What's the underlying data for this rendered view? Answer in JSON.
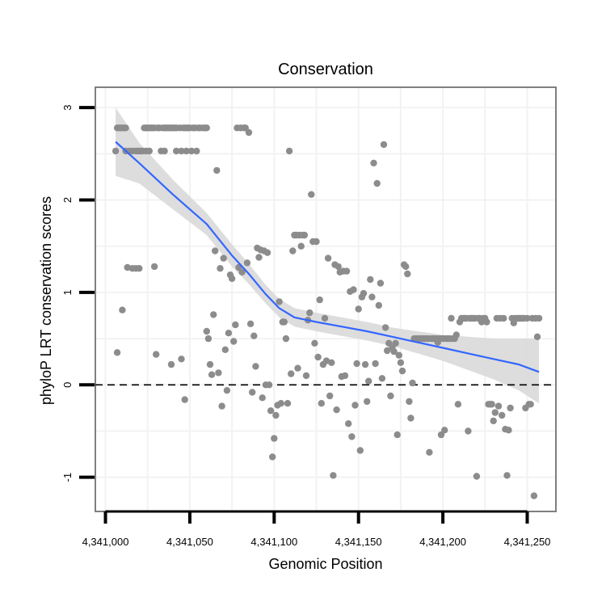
{
  "colors": {
    "point": "#8c8c8c",
    "line": "#3366ff",
    "ribbon": "#d9d9d9",
    "panel_border": "#7f7f7f",
    "grid": "#f2f2f2",
    "hline": "#000000"
  },
  "chart_data": {
    "type": "scatter",
    "title": "Conservation",
    "xlabel": "Genomic Position",
    "ylabel": "phyloP LRT conservation scores",
    "xlim": [
      4340994,
      4341267
    ],
    "ylim": [
      -1.37,
      3.22
    ],
    "x_ticks": [
      4341000,
      4341050,
      4341100,
      4341150,
      4341200,
      4341250
    ],
    "x_tick_labels": [
      "4,341,000",
      "4,341,050",
      "4,341,100",
      "4,341,150",
      "4,341,200",
      "4,341,250"
    ],
    "y_ticks": [
      -1,
      0,
      1,
      2,
      3
    ],
    "y_tick_labels": [
      "-1",
      "0",
      "1",
      "2",
      "3"
    ],
    "reference_line": {
      "y": 0,
      "style": "dashed"
    },
    "points": [
      [
        4341006,
        2.53
      ],
      [
        4341007,
        2.78
      ],
      [
        4341007,
        0.35
      ],
      [
        4341008,
        2.78
      ],
      [
        4341009,
        2.78
      ],
      [
        4341010,
        2.78
      ],
      [
        4341010,
        0.81
      ],
      [
        4341011,
        2.78
      ],
      [
        4341012,
        2.78
      ],
      [
        4341012,
        2.53
      ],
      [
        4341013,
        1.27
      ],
      [
        4341014,
        2.53
      ],
      [
        4341016,
        2.53
      ],
      [
        4341016,
        1.26
      ],
      [
        4341018,
        2.53
      ],
      [
        4341018,
        1.26
      ],
      [
        4341019,
        2.53
      ],
      [
        4341020,
        2.53
      ],
      [
        4341020,
        1.26
      ],
      [
        4341021,
        2.53
      ],
      [
        4341022,
        2.53
      ],
      [
        4341023,
        2.78
      ],
      [
        4341024,
        2.78
      ],
      [
        4341024,
        2.53
      ],
      [
        4341025,
        2.78
      ],
      [
        4341026,
        2.78
      ],
      [
        4341026,
        2.53
      ],
      [
        4341027,
        2.78
      ],
      [
        4341028,
        2.78
      ],
      [
        4341029,
        2.78
      ],
      [
        4341029,
        1.28
      ],
      [
        4341030,
        0.33
      ],
      [
        4341031,
        2.78
      ],
      [
        4341032,
        2.78
      ],
      [
        4341033,
        2.53
      ],
      [
        4341034,
        2.78
      ],
      [
        4341035,
        2.78
      ],
      [
        4341035,
        2.53
      ],
      [
        4341036,
        2.78
      ],
      [
        4341037,
        2.78
      ],
      [
        4341038,
        2.78
      ],
      [
        4341039,
        2.78
      ],
      [
        4341039,
        0.22
      ],
      [
        4341040,
        2.78
      ],
      [
        4341041,
        2.78
      ],
      [
        4341042,
        2.78
      ],
      [
        4341042,
        2.53
      ],
      [
        4341044,
        2.78
      ],
      [
        4341045,
        2.53
      ],
      [
        4341045,
        0.28
      ],
      [
        4341046,
        2.78
      ],
      [
        4341047,
        2.78
      ],
      [
        4341047,
        -0.16
      ],
      [
        4341048,
        2.78
      ],
      [
        4341048,
        2.53
      ],
      [
        4341049,
        2.78
      ],
      [
        4341050,
        2.78
      ],
      [
        4341051,
        2.53
      ],
      [
        4341052,
        2.78
      ],
      [
        4341053,
        2.78
      ],
      [
        4341054,
        2.53
      ],
      [
        4341055,
        2.78
      ],
      [
        4341056,
        2.78
      ],
      [
        4341058,
        2.78
      ],
      [
        4341059,
        2.78
      ],
      [
        4341060,
        2.78
      ],
      [
        4341060,
        0.58
      ],
      [
        4341061,
        0.5
      ],
      [
        4341062,
        0.22
      ],
      [
        4341063,
        0.11
      ],
      [
        4341064,
        0.76
      ],
      [
        4341065,
        1.45
      ],
      [
        4341066,
        2.32
      ],
      [
        4341067,
        0.13
      ],
      [
        4341068,
        1.26
      ],
      [
        4341069,
        -0.23
      ],
      [
        4341070,
        1.37
      ],
      [
        4341071,
        0.38
      ],
      [
        4341072,
        -0.06
      ],
      [
        4341073,
        0.56
      ],
      [
        4341074,
        1.19
      ],
      [
        4341075,
        1.15
      ],
      [
        4341076,
        0.47
      ],
      [
        4341077,
        0.65
      ],
      [
        4341078,
        2.78
      ],
      [
        4341079,
        1.27
      ],
      [
        4341080,
        2.78
      ],
      [
        4341081,
        1.22
      ],
      [
        4341082,
        2.78
      ],
      [
        4341083,
        2.78
      ],
      [
        4341084,
        1.32
      ],
      [
        4341085,
        2.73
      ],
      [
        4341086,
        0.66
      ],
      [
        4341087,
        -0.08
      ],
      [
        4341088,
        0.53
      ],
      [
        4341089,
        0.2
      ],
      [
        4341090,
        1.48
      ],
      [
        4341091,
        1.38
      ],
      [
        4341092,
        1.46
      ],
      [
        4341093,
        -0.14
      ],
      [
        4341094,
        1.45
      ],
      [
        4341095,
        0.0
      ],
      [
        4341096,
        1.43
      ],
      [
        4341097,
        0.0
      ],
      [
        4341098,
        -0.28
      ],
      [
        4341099,
        -0.78
      ],
      [
        4341100,
        -0.58
      ],
      [
        4341101,
        -0.33
      ],
      [
        4341102,
        -0.22
      ],
      [
        4341103,
        0.9
      ],
      [
        4341104,
        -0.2
      ],
      [
        4341105,
        0.68
      ],
      [
        4341106,
        0.68
      ],
      [
        4341107,
        0.5
      ],
      [
        4341108,
        -0.2
      ],
      [
        4341109,
        2.53
      ],
      [
        4341110,
        0.12
      ],
      [
        4341111,
        1.45
      ],
      [
        4341112,
        1.62
      ],
      [
        4341113,
        1.62
      ],
      [
        4341114,
        0.18
      ],
      [
        4341115,
        1.62
      ],
      [
        4341116,
        1.5
      ],
      [
        4341117,
        1.62
      ],
      [
        4341118,
        1.62
      ],
      [
        4341119,
        0.1
      ],
      [
        4341120,
        0.7
      ],
      [
        4341121,
        0.78
      ],
      [
        4341122,
        2.06
      ],
      [
        4341123,
        1.55
      ],
      [
        4341124,
        0.45
      ],
      [
        4341125,
        1.55
      ],
      [
        4341126,
        0.3
      ],
      [
        4341127,
        0.92
      ],
      [
        4341128,
        -0.2
      ],
      [
        4341129,
        0.22
      ],
      [
        4341130,
        0.72
      ],
      [
        4341131,
        0.26
      ],
      [
        4341132,
        1.37
      ],
      [
        4341133,
        -0.12
      ],
      [
        4341134,
        0.24
      ],
      [
        4341135,
        -0.98
      ],
      [
        4341136,
        1.3
      ],
      [
        4341137,
        -0.27
      ],
      [
        4341138,
        1.28
      ],
      [
        4341139,
        1.22
      ],
      [
        4341140,
        0.09
      ],
      [
        4341141,
        1.23
      ],
      [
        4341142,
        0.1
      ],
      [
        4341143,
        1.23
      ],
      [
        4341144,
        -0.42
      ],
      [
        4341145,
        1.01
      ],
      [
        4341146,
        -0.56
      ],
      [
        4341147,
        1.03
      ],
      [
        4341148,
        -0.22
      ],
      [
        4341149,
        0.23
      ],
      [
        4341150,
        0.82
      ],
      [
        4341151,
        -0.71
      ],
      [
        4341152,
        0.95
      ],
      [
        4341153,
        0.99
      ],
      [
        4341154,
        0.22
      ],
      [
        4341155,
        -0.18
      ],
      [
        4341156,
        0.04
      ],
      [
        4341157,
        1.14
      ],
      [
        4341158,
        0.95
      ],
      [
        4341159,
        2.4
      ],
      [
        4341160,
        0.23
      ],
      [
        4341161,
        2.18
      ],
      [
        4341162,
        0.86
      ],
      [
        4341163,
        1.1
      ],
      [
        4341164,
        0.07
      ],
      [
        4341165,
        2.6
      ],
      [
        4341166,
        0.62
      ],
      [
        4341167,
        0.37
      ],
      [
        4341168,
        0.45
      ],
      [
        4341169,
        -0.12
      ],
      [
        4341170,
        0.4
      ],
      [
        4341171,
        0.36
      ],
      [
        4341172,
        0.45
      ],
      [
        4341173,
        -0.54
      ],
      [
        4341174,
        0.32
      ],
      [
        4341175,
        0.24
      ],
      [
        4341176,
        0.15
      ],
      [
        4341177,
        1.3
      ],
      [
        4341178,
        1.28
      ],
      [
        4341179,
        1.2
      ],
      [
        4341180,
        -0.18
      ],
      [
        4341181,
        -0.36
      ],
      [
        4341182,
        0.02
      ],
      [
        4341183,
        0.5
      ],
      [
        4341184,
        0.5
      ],
      [
        4341185,
        0.5
      ],
      [
        4341186,
        0.5
      ],
      [
        4341187,
        0.5
      ],
      [
        4341188,
        0.5
      ],
      [
        4341189,
        0.5
      ],
      [
        4341190,
        0.5
      ],
      [
        4341191,
        0.5
      ],
      [
        4341192,
        -0.73
      ],
      [
        4341193,
        0.5
      ],
      [
        4341194,
        0.5
      ],
      [
        4341195,
        0.5
      ],
      [
        4341196,
        0.5
      ],
      [
        4341197,
        0.46
      ],
      [
        4341198,
        0.5
      ],
      [
        4341199,
        -0.54
      ],
      [
        4341200,
        0.5
      ],
      [
        4341201,
        -0.49
      ],
      [
        4341202,
        0.5
      ],
      [
        4341203,
        0.5
      ],
      [
        4341204,
        0.5
      ],
      [
        4341205,
        0.72
      ],
      [
        4341206,
        0.5
      ],
      [
        4341207,
        0.5
      ],
      [
        4341208,
        0.54
      ],
      [
        4341209,
        -0.21
      ],
      [
        4341210,
        0.68
      ],
      [
        4341211,
        0.72
      ],
      [
        4341212,
        0.72
      ],
      [
        4341213,
        0.72
      ],
      [
        4341214,
        0.72
      ],
      [
        4341215,
        -0.5
      ],
      [
        4341216,
        0.72
      ],
      [
        4341217,
        0.72
      ],
      [
        4341218,
        0.72
      ],
      [
        4341219,
        0.72
      ],
      [
        4341220,
        -0.99
      ],
      [
        4341221,
        0.72
      ],
      [
        4341222,
        0.72
      ],
      [
        4341223,
        0.68
      ],
      [
        4341224,
        0.72
      ],
      [
        4341225,
        0.72
      ],
      [
        4341226,
        0.68
      ],
      [
        4341227,
        -0.21
      ],
      [
        4341228,
        -0.21
      ],
      [
        4341229,
        -0.21
      ],
      [
        4341230,
        -0.39
      ],
      [
        4341231,
        -0.3
      ],
      [
        4341232,
        0.72
      ],
      [
        4341233,
        -0.23
      ],
      [
        4341234,
        0.72
      ],
      [
        4341235,
        -0.33
      ],
      [
        4341236,
        0.72
      ],
      [
        4341237,
        -0.48
      ],
      [
        4341238,
        -0.98
      ],
      [
        4341239,
        -0.49
      ],
      [
        4341240,
        -0.25
      ],
      [
        4341241,
        0.72
      ],
      [
        4341242,
        0.67
      ],
      [
        4341243,
        0.72
      ],
      [
        4341244,
        0.72
      ],
      [
        4341245,
        0.72
      ],
      [
        4341246,
        0.72
      ],
      [
        4341247,
        0.72
      ],
      [
        4341248,
        0.72
      ],
      [
        4341249,
        -0.25
      ],
      [
        4341250,
        0.72
      ],
      [
        4341251,
        -0.21
      ],
      [
        4341252,
        -0.21
      ],
      [
        4341253,
        0.72
      ],
      [
        4341254,
        -1.2
      ],
      [
        4341255,
        0.72
      ],
      [
        4341256,
        0.52
      ],
      [
        4341257,
        0.72
      ]
    ],
    "smooth_line": [
      [
        4341006,
        2.63
      ],
      [
        4341020,
        2.4
      ],
      [
        4341040,
        2.06
      ],
      [
        4341060,
        1.74
      ],
      [
        4341075,
        1.4
      ],
      [
        4341085,
        1.2
      ],
      [
        4341095,
        0.98
      ],
      [
        4341103,
        0.83
      ],
      [
        4341112,
        0.73
      ],
      [
        4341125,
        0.68
      ],
      [
        4341140,
        0.63
      ],
      [
        4341155,
        0.58
      ],
      [
        4341170,
        0.52
      ],
      [
        4341185,
        0.46
      ],
      [
        4341200,
        0.4
      ],
      [
        4341215,
        0.34
      ],
      [
        4341230,
        0.28
      ],
      [
        4341245,
        0.22
      ],
      [
        4341257,
        0.14
      ]
    ],
    "ribbon_upper": [
      [
        4341006,
        3.0
      ],
      [
        4341020,
        2.62
      ],
      [
        4341040,
        2.22
      ],
      [
        4341060,
        1.86
      ],
      [
        4341075,
        1.52
      ],
      [
        4341085,
        1.31
      ],
      [
        4341095,
        1.08
      ],
      [
        4341103,
        0.93
      ],
      [
        4341112,
        0.83
      ],
      [
        4341125,
        0.78
      ],
      [
        4341140,
        0.73
      ],
      [
        4341155,
        0.68
      ],
      [
        4341170,
        0.62
      ],
      [
        4341185,
        0.58
      ],
      [
        4341200,
        0.54
      ],
      [
        4341215,
        0.52
      ],
      [
        4341230,
        0.5
      ],
      [
        4341245,
        0.5
      ],
      [
        4341257,
        0.5
      ]
    ],
    "ribbon_lower": [
      [
        4341006,
        2.26
      ],
      [
        4341020,
        2.18
      ],
      [
        4341040,
        1.9
      ],
      [
        4341060,
        1.62
      ],
      [
        4341075,
        1.28
      ],
      [
        4341085,
        1.09
      ],
      [
        4341095,
        0.88
      ],
      [
        4341103,
        0.73
      ],
      [
        4341112,
        0.63
      ],
      [
        4341125,
        0.58
      ],
      [
        4341140,
        0.53
      ],
      [
        4341155,
        0.48
      ],
      [
        4341170,
        0.42
      ],
      [
        4341185,
        0.34
      ],
      [
        4341200,
        0.26
      ],
      [
        4341215,
        0.16
      ],
      [
        4341230,
        0.06
      ],
      [
        4341245,
        -0.06
      ],
      [
        4341257,
        -0.2
      ]
    ]
  }
}
